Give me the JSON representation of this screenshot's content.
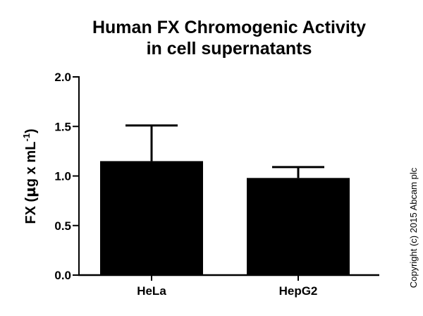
{
  "chart_data": {
    "type": "bar",
    "title_line1": "Human FX Chromogenic Activity",
    "title_line2": "in cell supernatants",
    "ylabel": {
      "prefix": "FX (",
      "mu": "µ",
      "middle": "g x mL",
      "superscript": "-1",
      "suffix": ")"
    },
    "xlabel": "",
    "categories": [
      "HeLa",
      "HepG2"
    ],
    "values": [
      1.15,
      0.98
    ],
    "errors": [
      0.36,
      0.11
    ],
    "ylim": [
      0.0,
      2.0
    ],
    "yticks": [
      "0.0",
      "0.5",
      "1.0",
      "1.5",
      "2.0"
    ],
    "bar_color": "#000000",
    "grid": false,
    "legend": "none"
  },
  "copyright": "Copyright (c) 2015 Abcam plc"
}
